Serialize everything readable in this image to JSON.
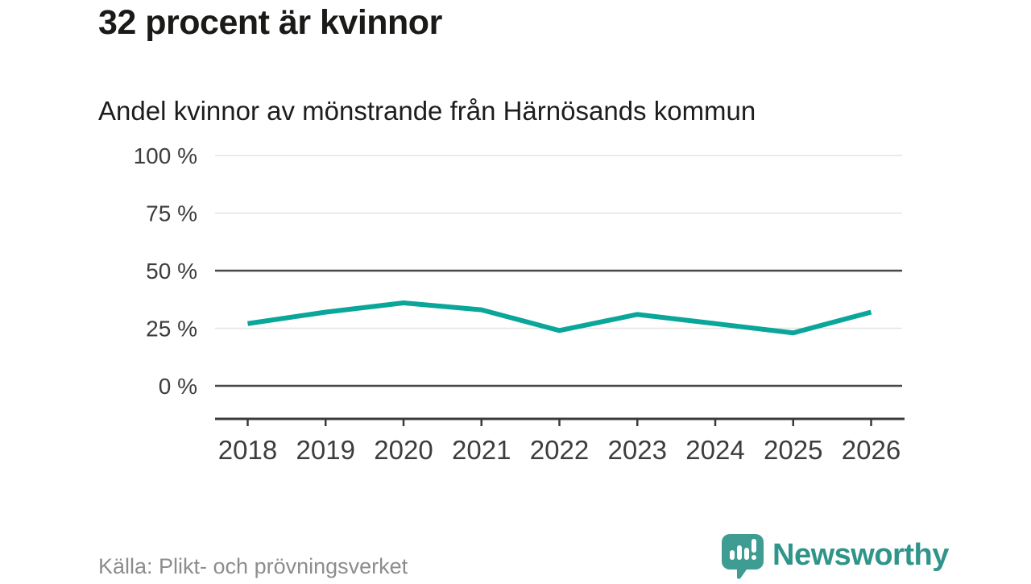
{
  "header": {
    "title": "32 procent är kvinnor",
    "subtitle": "Andel kvinnor av mönstrande från Härnösands kommun"
  },
  "chart_data": {
    "type": "line",
    "title": "32 procent är kvinnor",
    "subtitle": "Andel kvinnor av mönstrande från Härnösands kommun",
    "x": [
      "2018",
      "2019",
      "2020",
      "2021",
      "2022",
      "2023",
      "2024",
      "2025",
      "2026"
    ],
    "series": [
      {
        "name": "Andel kvinnor av mönstrande",
        "values": [
          27,
          32,
          36,
          33,
          24,
          31,
          27,
          23,
          32
        ],
        "color": "#0aa69a"
      }
    ],
    "unit": "%",
    "ylim": [
      0,
      100
    ],
    "yticks": [
      {
        "value": 0,
        "label": "0 %",
        "emphasized": true
      },
      {
        "value": 25,
        "label": "25 %",
        "emphasized": false
      },
      {
        "value": 50,
        "label": "50 %",
        "emphasized": true
      },
      {
        "value": 75,
        "label": "75 %",
        "emphasized": false
      },
      {
        "value": 100,
        "label": "100 %",
        "emphasized": false
      }
    ],
    "grid": true,
    "legend": "none",
    "xlabel": "",
    "ylabel": "",
    "source": "Källa: Plikt- och prövningsverket"
  },
  "footer": {
    "source": "Källa: Plikt- och prövningsverket",
    "brand": "Newsworthy",
    "brand_color": "#2f948a",
    "icon_color": "#3e9c92"
  },
  "colors": {
    "line": "#0aa69a",
    "grid_light": "#e3e3e3",
    "grid_dark": "#474747",
    "axis": "#3a3a3a",
    "tick_label": "#3d3d3d",
    "title_text": "#1a1a18",
    "source_text": "#8d8d8d"
  }
}
